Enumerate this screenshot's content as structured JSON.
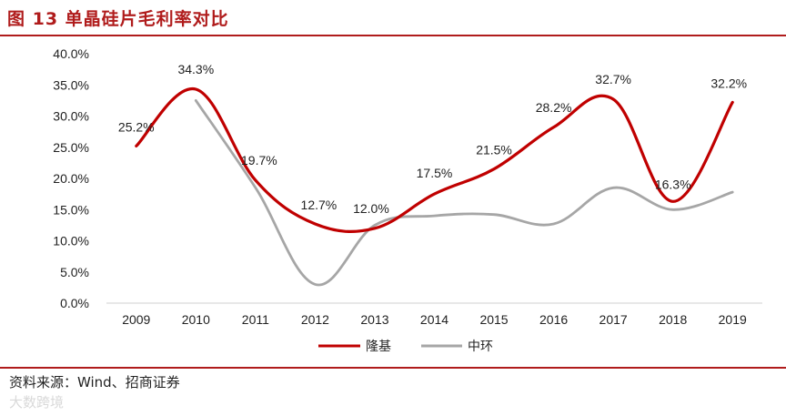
{
  "title": "图 13  单晶硅片毛利率对比",
  "source": "资料来源：Wind、招商证券",
  "watermark": "大数跨境",
  "chart_data": {
    "type": "line",
    "categories": [
      "2009",
      "2010",
      "2011",
      "2012",
      "2013",
      "2014",
      "2015",
      "2016",
      "2017",
      "2018",
      "2019"
    ],
    "y_ticks": [
      "0.0%",
      "5.0%",
      "10.0%",
      "15.0%",
      "20.0%",
      "25.0%",
      "30.0%",
      "35.0%",
      "40.0%"
    ],
    "ylim": [
      0,
      40
    ],
    "grid": false,
    "legend_position": "bottom",
    "series": [
      {
        "name": "隆基",
        "color": "#c00000",
        "values": [
          25.2,
          34.3,
          19.7,
          12.7,
          12.0,
          17.5,
          21.5,
          28.2,
          32.7,
          16.3,
          32.2
        ],
        "labels": [
          "25.2%",
          "34.3%",
          "19.7%",
          "12.7%",
          "12.0%",
          "17.5%",
          "21.5%",
          "28.2%",
          "32.7%",
          "16.3%",
          "32.2%"
        ]
      },
      {
        "name": "中环",
        "color": "#a6a6a6",
        "values": [
          null,
          32.5,
          18.5,
          3.0,
          12.5,
          14.0,
          14.2,
          12.7,
          18.5,
          15.0,
          17.8
        ]
      }
    ]
  }
}
